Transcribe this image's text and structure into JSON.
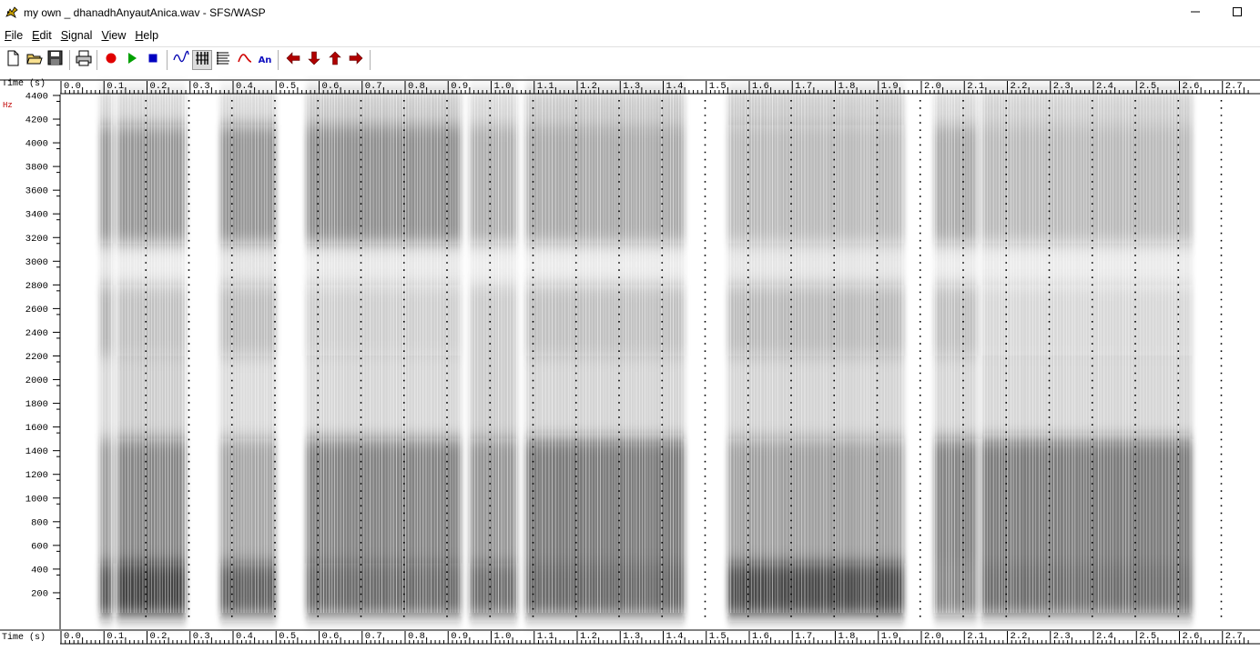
{
  "window": {
    "title": "my own _ dhanadhAnyautAnica.wav - SFS/WASP",
    "icons": {
      "app": "wasp-app-icon",
      "minimize": "minimize-icon",
      "maximize": "maximize-icon"
    }
  },
  "menu": [
    {
      "label": "File"
    },
    {
      "label": "Edit"
    },
    {
      "label": "Signal"
    },
    {
      "label": "View"
    },
    {
      "label": "Help"
    }
  ],
  "toolbar": {
    "buttons": [
      "new-file-icon",
      "open-folder-icon",
      "save-icon",
      "print-icon",
      "record-icon",
      "play-icon",
      "stop-icon",
      "waveform-icon",
      "spectrogram-wideband-icon",
      "spectrogram-narrowband-icon",
      "pitch-icon",
      "annotation-icon",
      "scroll-left-icon",
      "zoom-out-icon",
      "zoom-in-icon",
      "scroll-right-icon"
    ],
    "annotation_label": "An",
    "pressed": "spectrogram-wideband-icon"
  },
  "axes": {
    "time_label": "Time (s)",
    "freq_label": "Hz",
    "time_ticks": [
      "0.0",
      "0.1",
      "0.2",
      "0.3",
      "0.4",
      "0.5",
      "0.6",
      "0.7",
      "0.8",
      "0.9",
      "1.0",
      "1.1",
      "1.2",
      "1.3",
      "1.4",
      "1.5",
      "1.6",
      "1.7",
      "1.8",
      "1.9",
      "2.0",
      "2.1",
      "2.2",
      "2.3",
      "2.4",
      "2.5",
      "2.6",
      "2.7"
    ],
    "freq_ticks": [
      "4400",
      "4200",
      "4000",
      "3800",
      "3600",
      "3400",
      "3200",
      "3000",
      "2800",
      "2600",
      "2400",
      "2200",
      "2000",
      "1800",
      "1600",
      "1400",
      "1200",
      "1000",
      "800",
      "600",
      "400",
      "200"
    ],
    "colors": {
      "freq_label": "#c00000",
      "ink": "#000000",
      "spectrogram_dark": "#202020"
    }
  },
  "spectrogram": {
    "time_range": [
      0.0,
      2.76
    ],
    "freq_range": [
      0,
      4500
    ],
    "voiced_segments_s": [
      [
        0.09,
        0.12
      ],
      [
        0.13,
        0.29
      ],
      [
        0.37,
        0.5
      ],
      [
        0.57,
        0.93
      ],
      [
        0.95,
        1.06
      ],
      [
        1.08,
        1.45
      ],
      [
        1.55,
        1.96
      ],
      [
        2.03,
        2.13
      ],
      [
        2.14,
        2.63
      ]
    ]
  }
}
